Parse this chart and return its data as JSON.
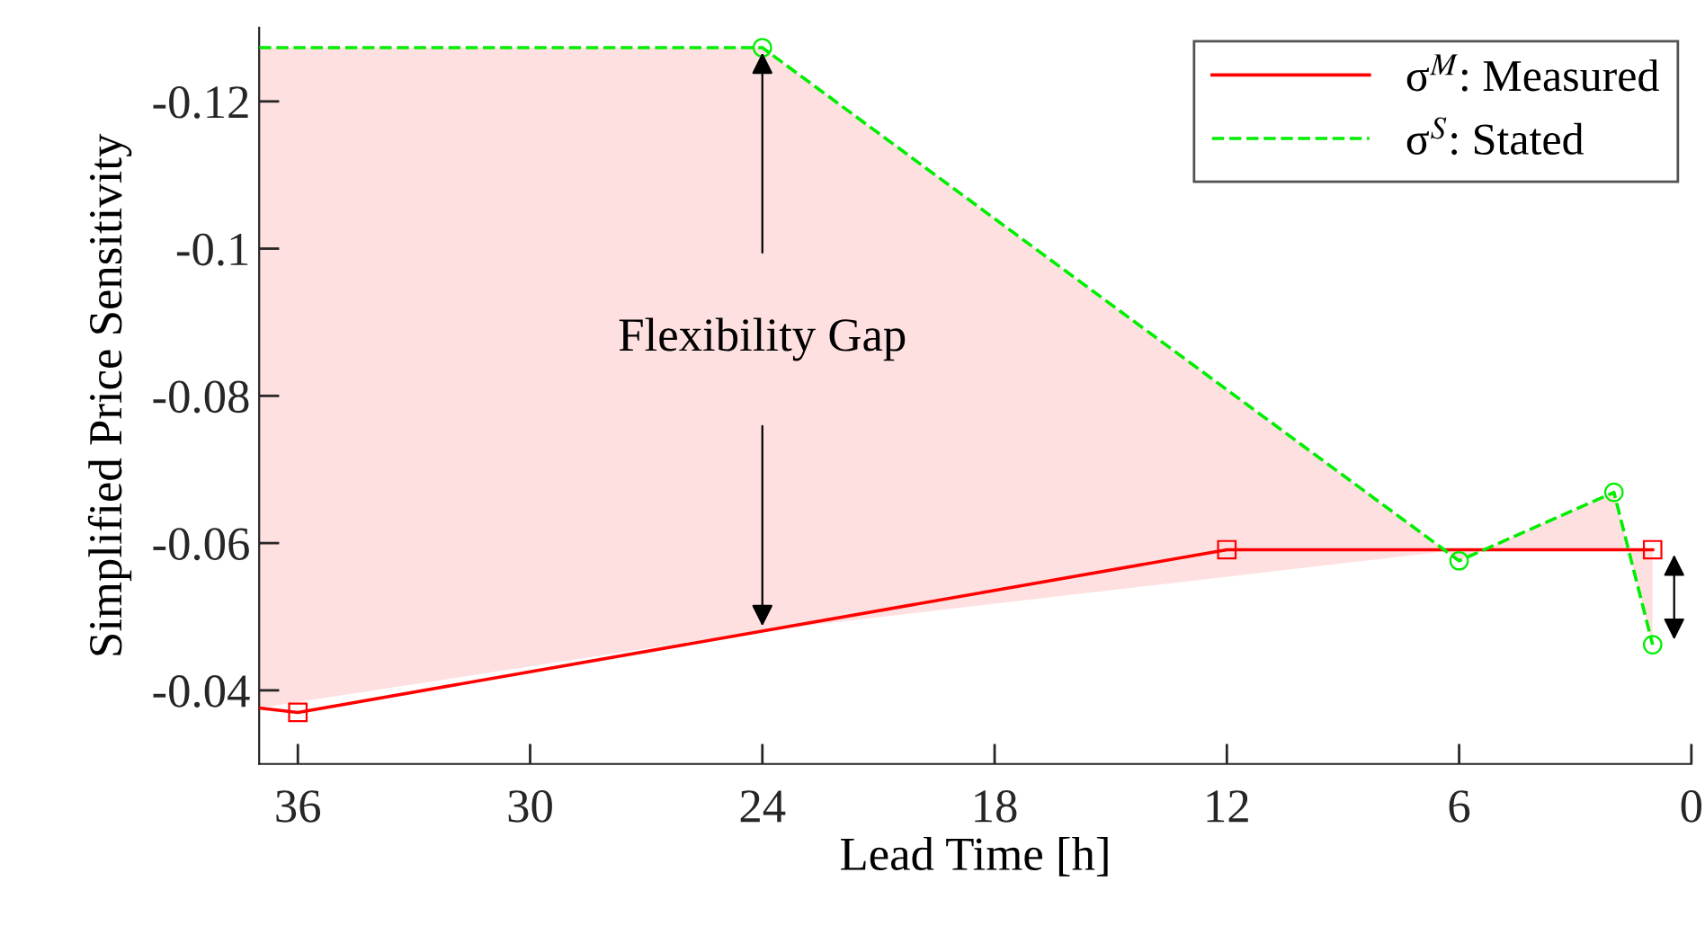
{
  "chart_data": {
    "type": "line",
    "xlabel": "Lead Time [h]",
    "ylabel": "Simplified Price Sensitivity",
    "xlim": [
      37,
      0
    ],
    "xticks": [
      36,
      30,
      24,
      18,
      12,
      6,
      0
    ],
    "ylim": [
      -0.03,
      -0.13
    ],
    "yticks": [
      -0.12,
      -0.1,
      -0.08,
      -0.06,
      -0.04
    ],
    "grid": false,
    "legend": "top right",
    "series": [
      {
        "name": "σ$^{M}$: Measured",
        "color": "#ff0000",
        "marker": "square",
        "line_style": "solid",
        "x": [
          37,
          36,
          12,
          1
        ],
        "values": [
          -0.0376,
          -0.037,
          -0.0591,
          -0.0591
        ]
      },
      {
        "name": "σ$^{S}$: Stated",
        "color": "#00ee00",
        "marker": "circle",
        "line_style": "dashed",
        "x": [
          37,
          24,
          6,
          2,
          1
        ],
        "values": [
          -0.1273,
          -0.1273,
          -0.0576,
          -0.0669,
          -0.0462
        ],
        "lower": [
          -0.0376,
          -0.0481,
          -0.0591,
          -0.0591,
          -0.0591
        ],
        "upper": [
          -0.1273,
          -0.1273,
          -0.0576,
          -0.0669,
          -0.0462
        ]
      }
    ],
    "annotations": [
      "Flexibility Gap"
    ]
  }
}
